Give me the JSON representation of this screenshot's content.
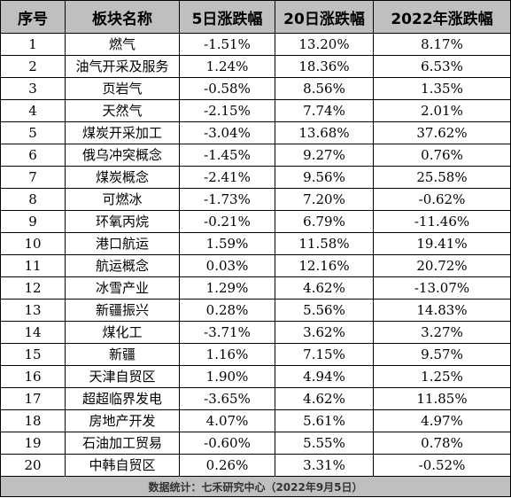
{
  "headers": [
    "序号",
    "板块名称",
    "5日涨跌幅",
    "20日涨跌幅",
    "2022年涨跌幅"
  ],
  "rows": [
    [
      "1",
      "燃气",
      "-1.51%",
      "13.20%",
      "8.17%"
    ],
    [
      "2",
      "油气开采及服务",
      "1.24%",
      "18.36%",
      "6.53%"
    ],
    [
      "3",
      "页岩气",
      "-0.58%",
      "8.56%",
      "1.35%"
    ],
    [
      "4",
      "天然气",
      "-2.15%",
      "7.74%",
      "2.01%"
    ],
    [
      "5",
      "煤炭开采加工",
      "-3.04%",
      "13.68%",
      "37.62%"
    ],
    [
      "6",
      "俄乌冲突概念",
      "-1.45%",
      "9.27%",
      "0.76%"
    ],
    [
      "7",
      "煤炭概念",
      "-2.41%",
      "9.56%",
      "25.58%"
    ],
    [
      "8",
      "可燃冰",
      "-1.73%",
      "7.20%",
      "-0.62%"
    ],
    [
      "9",
      "环氧丙烷",
      "-0.21%",
      "6.79%",
      "-11.46%"
    ],
    [
      "10",
      "港口航运",
      "1.59%",
      "11.58%",
      "19.41%"
    ],
    [
      "11",
      "航运概念",
      "0.03%",
      "12.16%",
      "20.72%"
    ],
    [
      "12",
      "冰雪产业",
      "1.29%",
      "4.62%",
      "-13.07%"
    ],
    [
      "13",
      "新疆振兴",
      "0.28%",
      "5.56%",
      "14.83%"
    ],
    [
      "14",
      "煤化工",
      "-3.71%",
      "3.62%",
      "3.27%"
    ],
    [
      "15",
      "新疆",
      "1.16%",
      "7.15%",
      "9.57%"
    ],
    [
      "16",
      "天津自贸区",
      "1.90%",
      "4.94%",
      "1.25%"
    ],
    [
      "17",
      "超超临界发电",
      "-3.65%",
      "4.62%",
      "11.85%"
    ],
    [
      "18",
      "房地产开发",
      "4.07%",
      "5.61%",
      "4.97%"
    ],
    [
      "19",
      "石油加工贸易",
      "-0.60%",
      "5.55%",
      "0.78%"
    ],
    [
      "20",
      "中韩自贸区",
      "0.26%",
      "3.31%",
      "-0.52%"
    ]
  ],
  "footer": "数据统计：七禾研究中心（2022年9月5日）",
  "colors": {
    "header_bg": "#bfbfbf",
    "border": "#000000",
    "text": "#000000"
  }
}
